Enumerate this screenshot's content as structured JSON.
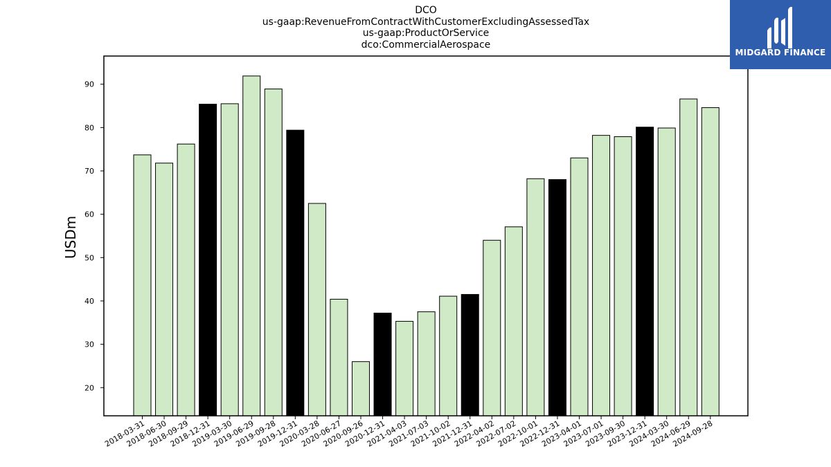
{
  "title_lines": [
    "DCO",
    "us-gaap:RevenueFromContractWithCustomerExcludingAssessedTax",
    "us-gaap:ProductOrService",
    "dco:CommercialAerospace"
  ],
  "logo": {
    "text": "MIDGARD FINANCE",
    "bg_color": "#2f5eae",
    "icon": "stylized-M-logo-icon"
  },
  "chart_data": {
    "type": "bar",
    "ylabel": "USDm",
    "xlabel": "",
    "ylim": [
      13.5,
      96.5
    ],
    "yticks": [
      20,
      30,
      40,
      50,
      60,
      70,
      80,
      90
    ],
    "categories": [
      "2018-03-31",
      "2018-06-30",
      "2018-09-29",
      "2018-12-31",
      "2019-03-30",
      "2019-06-29",
      "2019-09-28",
      "2019-12-31",
      "2020-03-28",
      "2020-06-27",
      "2020-09-26",
      "2020-12-31",
      "2021-04-03",
      "2021-07-03",
      "2021-10-02",
      "2021-12-31",
      "2022-04-02",
      "2022-07-02",
      "2022-10-01",
      "2022-12-31",
      "2023-04-01",
      "2023-07-01",
      "2023-09-30",
      "2023-12-31",
      "2024-03-30",
      "2024-06-29",
      "2024-09-28"
    ],
    "values": [
      73.7,
      71.8,
      76.2,
      85.4,
      85.5,
      91.9,
      88.9,
      79.4,
      62.5,
      40.4,
      26.0,
      37.2,
      35.3,
      37.5,
      41.1,
      41.5,
      54.0,
      57.1,
      68.2,
      68.0,
      73.0,
      78.2,
      77.9,
      80.1,
      79.9,
      86.6,
      84.6
    ],
    "highlight": [
      false,
      false,
      false,
      true,
      false,
      false,
      false,
      true,
      false,
      false,
      false,
      true,
      false,
      false,
      false,
      true,
      false,
      false,
      false,
      true,
      false,
      false,
      false,
      true,
      false,
      false,
      false
    ],
    "colors": {
      "bar": "#d0e9c6",
      "highlight": "#000000",
      "edge": "#000000"
    }
  }
}
